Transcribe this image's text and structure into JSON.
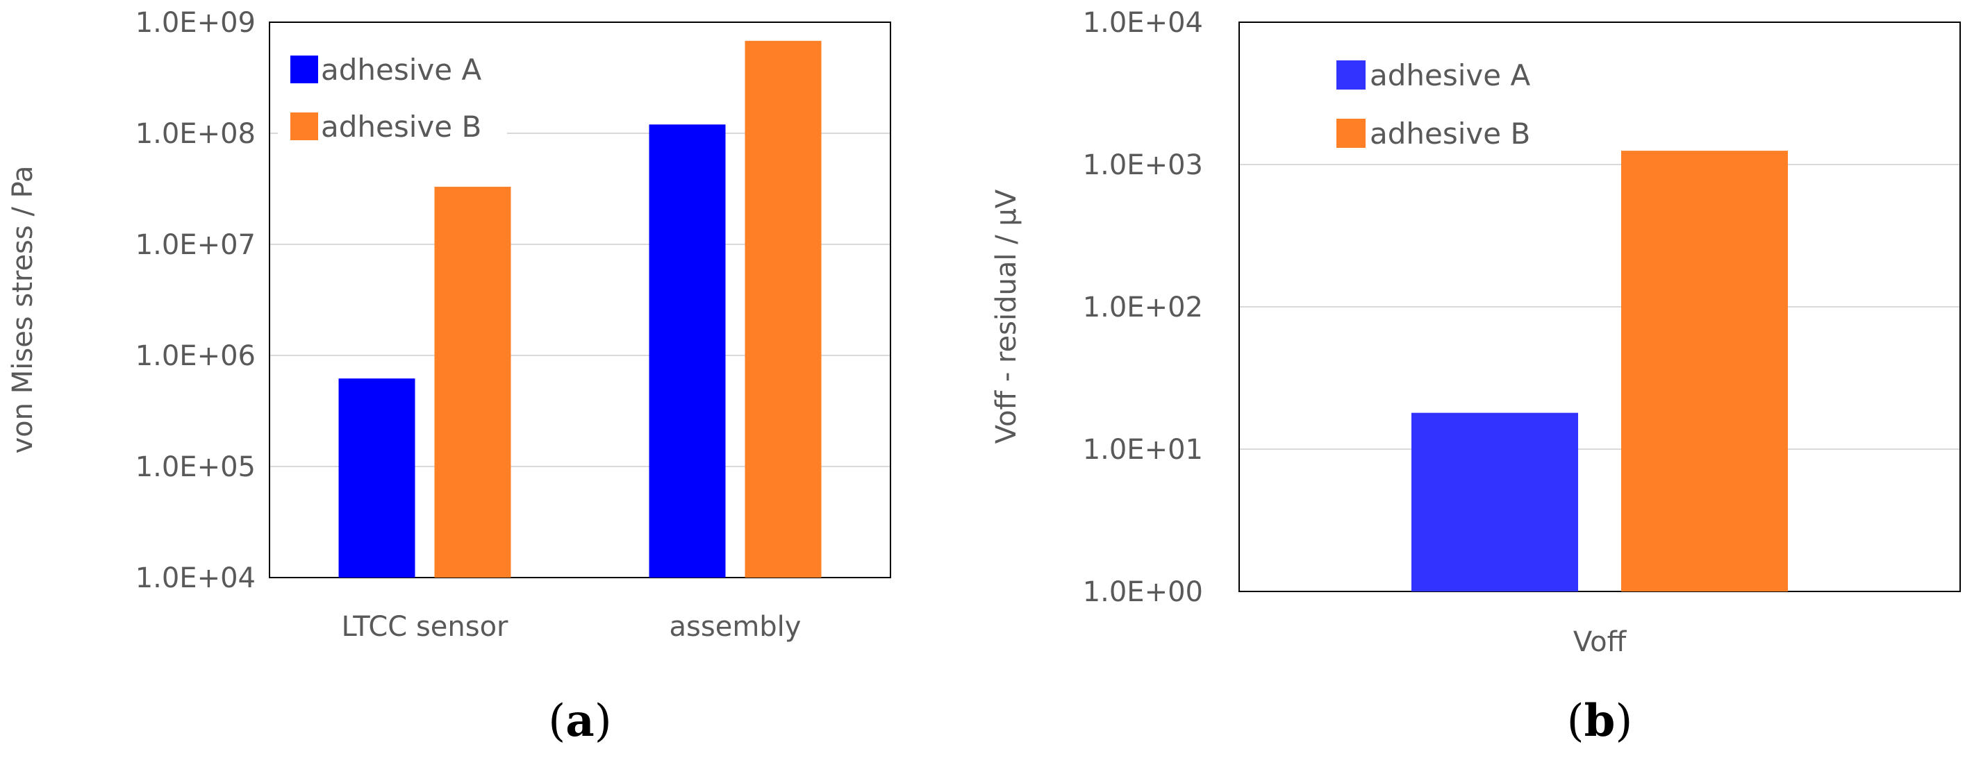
{
  "chart_data": [
    {
      "type": "bar",
      "panel_label": "(a)",
      "panel_letter": "a",
      "scale": "log",
      "ylabel": "von Mises stress / Pa",
      "ylim": [
        10000,
        1000000000
      ],
      "yticks": [
        "1.0E+04",
        "1.0E+05",
        "1.0E+06",
        "1.0E+07",
        "1.0E+08",
        "1.0E+09"
      ],
      "categories": [
        "LTCC sensor",
        "assembly"
      ],
      "series": [
        {
          "name": "adhesive A",
          "color": "#0000ff",
          "values": [
            620000,
            120000000
          ]
        },
        {
          "name": "adhesive B",
          "color": "#ff7f27",
          "values": [
            33000000,
            680000000
          ]
        }
      ],
      "legend": "top-left",
      "grid": "horizontal"
    },
    {
      "type": "bar",
      "panel_label": "(b)",
      "panel_letter": "b",
      "scale": "log",
      "ylabel": "Voff - residual / µV",
      "ylim": [
        1,
        10000
      ],
      "yticks": [
        "1.0E+00",
        "1.0E+01",
        "1.0E+02",
        "1.0E+03",
        "1.0E+04"
      ],
      "categories": [
        "Voff"
      ],
      "series": [
        {
          "name": "adhesive A",
          "color": "#3333ff",
          "values": [
            18
          ]
        },
        {
          "name": "adhesive B",
          "color": "#ff7f27",
          "values": [
            1250
          ]
        }
      ],
      "legend": "top-left",
      "grid": "horizontal"
    }
  ]
}
